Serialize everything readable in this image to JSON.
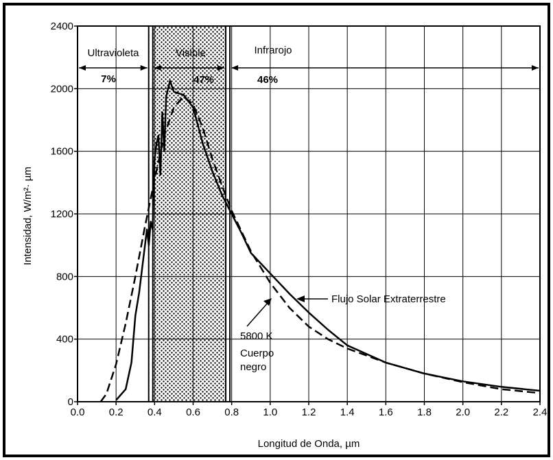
{
  "chart_data": {
    "type": "line",
    "xlabel": "Longitud de Onda, µm",
    "ylabel": "Intensidad, W/m²· µm",
    "xlim": [
      0.0,
      2.4
    ],
    "ylim": [
      0,
      2400
    ],
    "x_ticks": [
      "0.0",
      "0.2",
      "0.4",
      "0.6",
      "0.8",
      "1.0",
      "1.2",
      "1.4",
      "1.6",
      "1.8",
      "2.0",
      "2.2",
      "2.4"
    ],
    "y_ticks": [
      "0",
      "400",
      "800",
      "1200",
      "1600",
      "2000",
      "2400"
    ],
    "grid": true,
    "regions": [
      {
        "label": "Ultravioleta",
        "percent": "7%",
        "x_range": [
          0.0,
          0.38
        ]
      },
      {
        "label": "Visible",
        "percent": "47%",
        "x_range": [
          0.38,
          0.78
        ],
        "shaded": true
      },
      {
        "label": "Infrarojo",
        "percent": "46%",
        "x_range": [
          0.78,
          2.4
        ]
      }
    ],
    "series": [
      {
        "name": "Flujo Solar Extraterrestre",
        "style": "solid",
        "x": [
          0.2,
          0.25,
          0.28,
          0.3,
          0.32,
          0.34,
          0.35,
          0.36,
          0.37,
          0.38,
          0.39,
          0.4,
          0.41,
          0.42,
          0.43,
          0.44,
          0.45,
          0.46,
          0.47,
          0.48,
          0.5,
          0.55,
          0.6,
          0.65,
          0.7,
          0.75,
          0.8,
          0.85,
          0.9,
          1.0,
          1.1,
          1.2,
          1.3,
          1.4,
          1.6,
          1.8,
          2.0,
          2.2,
          2.4
        ],
        "y": [
          10,
          80,
          250,
          550,
          700,
          900,
          1000,
          1100,
          1000,
          1150,
          1100,
          1550,
          1650,
          1700,
          1450,
          1850,
          1600,
          1950,
          2000,
          2050,
          1980,
          1960,
          1880,
          1650,
          1470,
          1320,
          1200,
          1080,
          950,
          820,
          690,
          570,
          460,
          360,
          250,
          180,
          130,
          95,
          70
        ]
      },
      {
        "name": "5800 K Cuerpo negro",
        "style": "dashed",
        "x": [
          0.12,
          0.15,
          0.2,
          0.25,
          0.3,
          0.35,
          0.4,
          0.45,
          0.5,
          0.55,
          0.6,
          0.65,
          0.7,
          0.75,
          0.8,
          0.9,
          1.0,
          1.1,
          1.2,
          1.3,
          1.4,
          1.6,
          1.8,
          2.0,
          2.2,
          2.4
        ],
        "y": [
          0,
          50,
          240,
          500,
          800,
          1120,
          1420,
          1700,
          1880,
          1950,
          1900,
          1750,
          1550,
          1380,
          1220,
          960,
          760,
          600,
          480,
          400,
          340,
          250,
          180,
          125,
          80,
          55
        ]
      }
    ],
    "annotations": [
      {
        "text": "Flujo Solar Extraterrestre"
      },
      {
        "lines": [
          "5800 K",
          "Cuerpo",
          "negro"
        ]
      }
    ]
  }
}
